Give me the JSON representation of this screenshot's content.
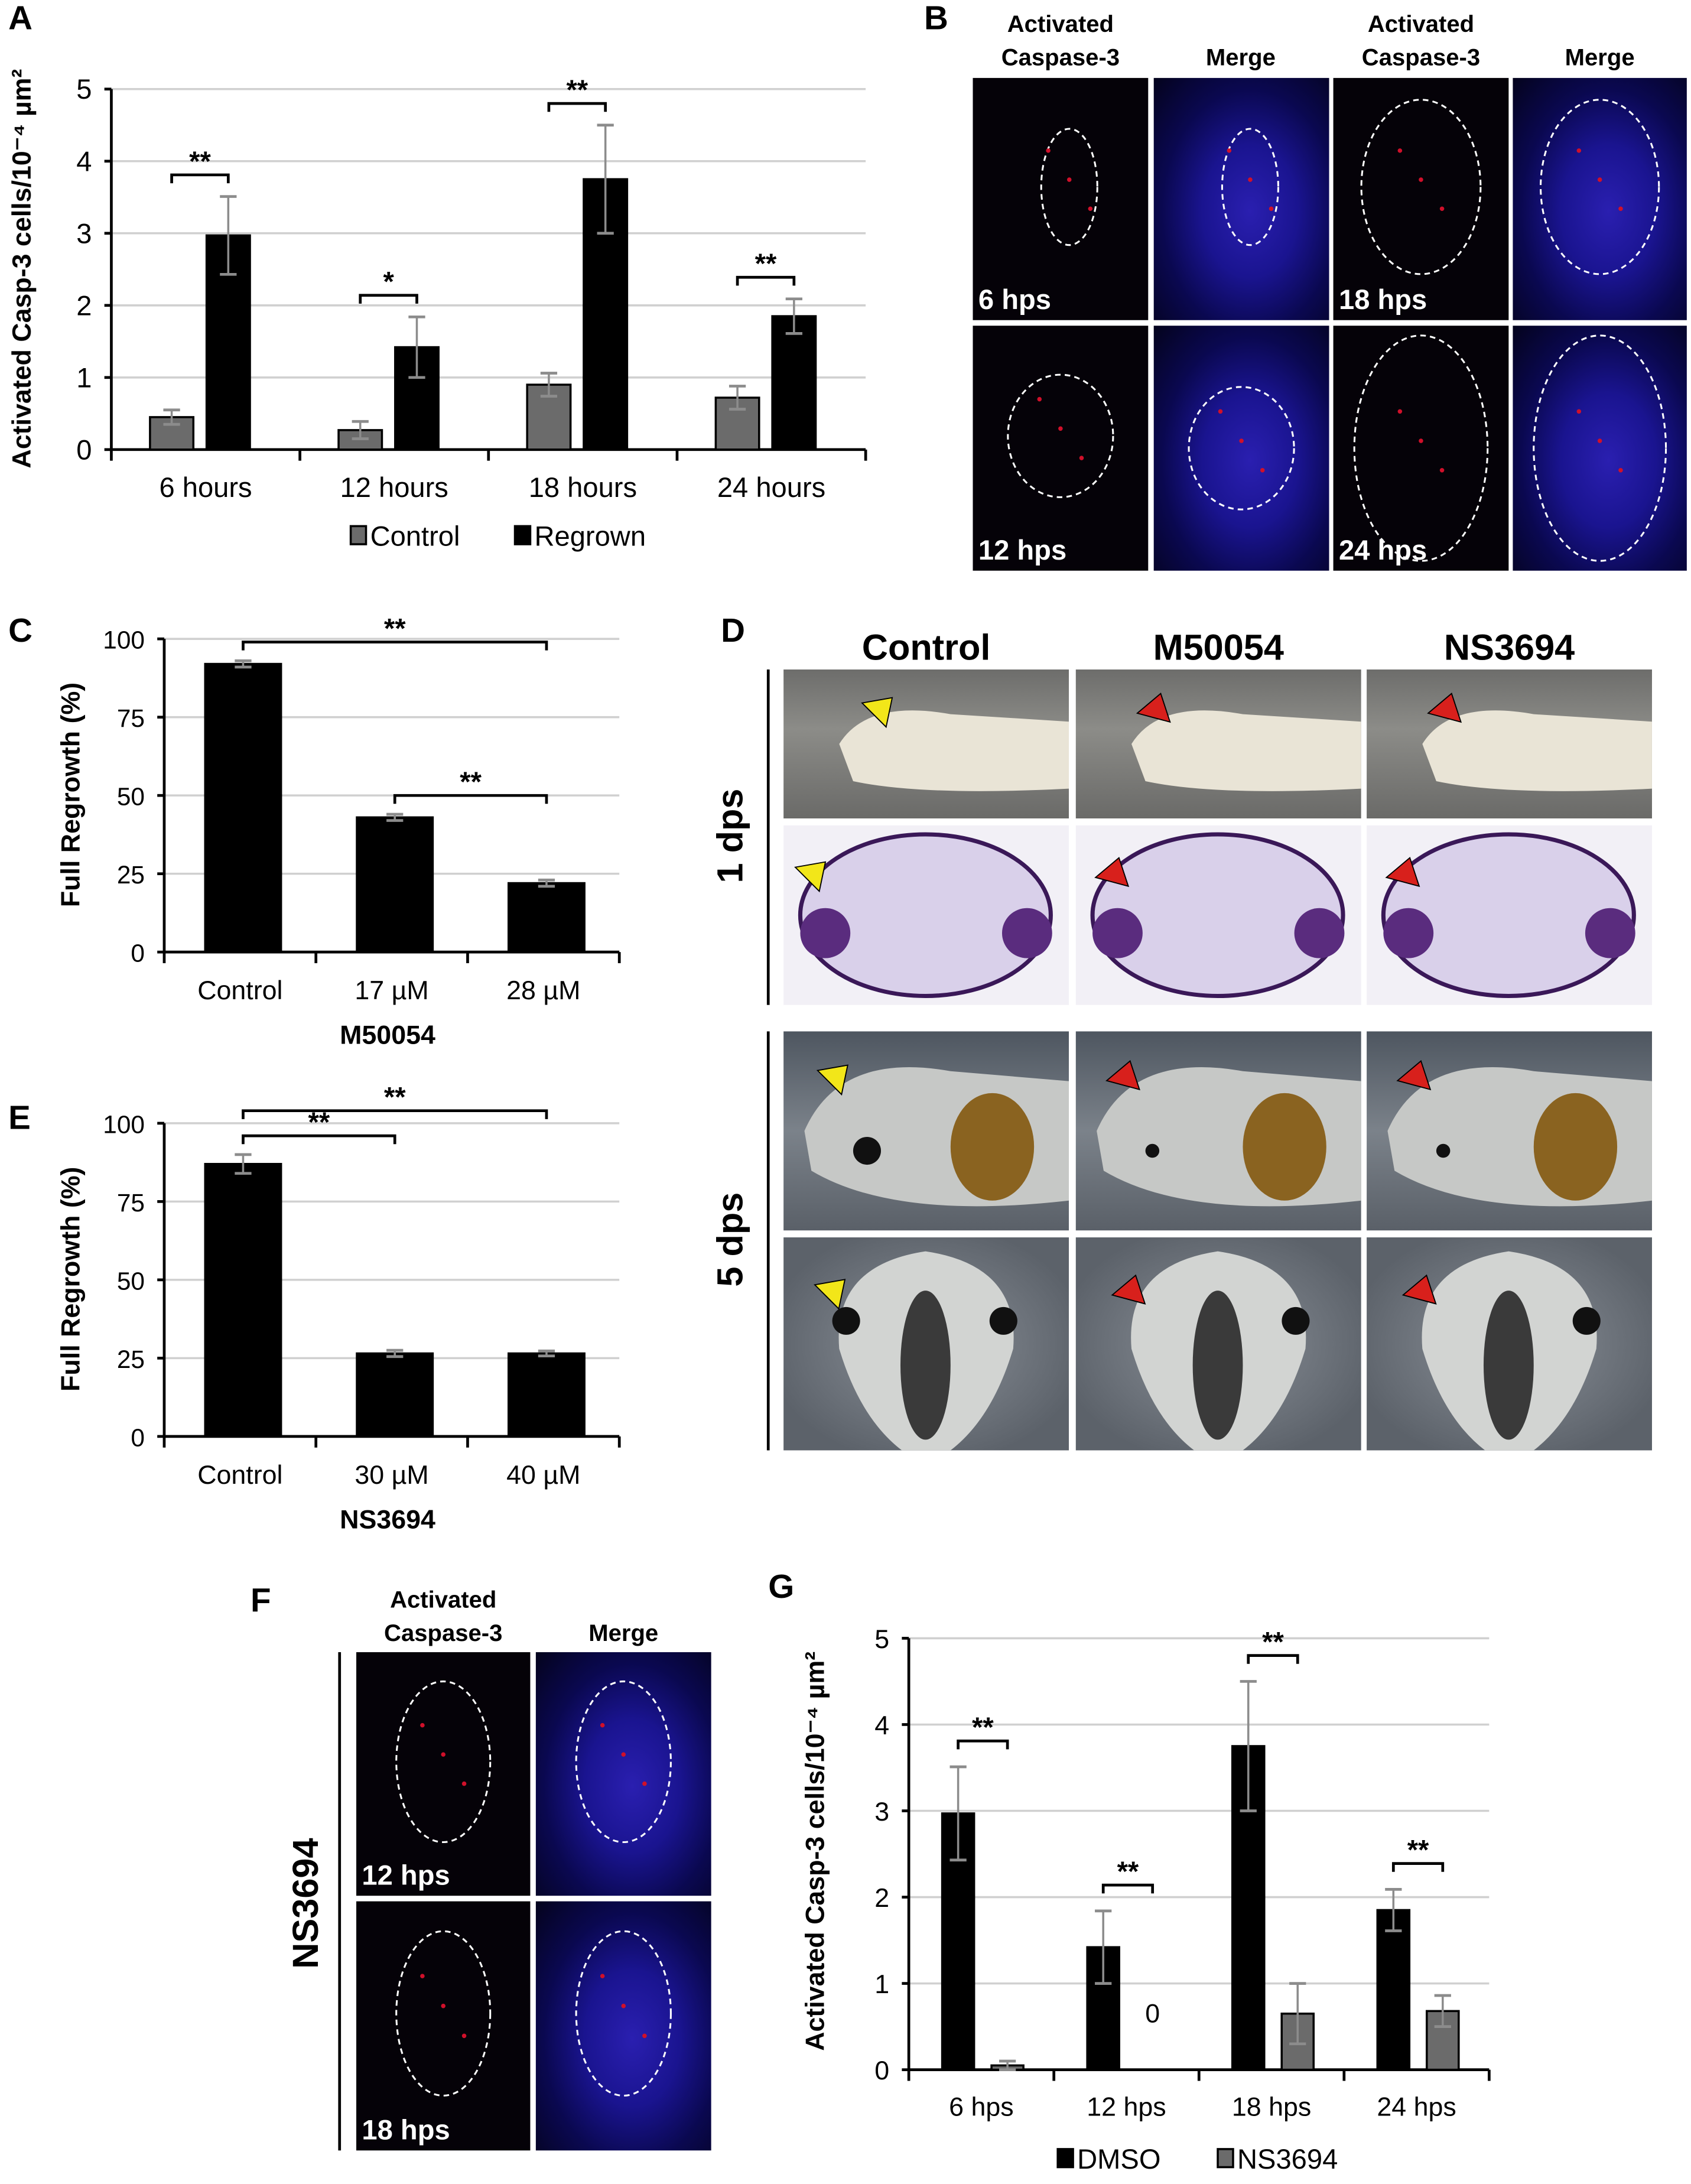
{
  "panels": {
    "A": "A",
    "B": "B",
    "C": "C",
    "D": "D",
    "E": "E",
    "F": "F",
    "G": "G"
  },
  "panel_b": {
    "headers": [
      "Activated\nCaspase-3",
      "Merge",
      "Activated\nCaspase-3",
      "Merge"
    ],
    "tags": [
      "6 hps",
      "18 hps",
      "12 hps",
      "24 hps"
    ]
  },
  "panel_d": {
    "columns": [
      "Control",
      "M50054",
      "NS3694"
    ],
    "rows": [
      "1 dps",
      "5 dps"
    ],
    "arrow_colors": {
      "control": "#f2e619",
      "treated": "#d8201c"
    }
  },
  "panel_f": {
    "headers": [
      "Activated\nCaspase-3",
      "Merge"
    ],
    "row_label": "NS3694",
    "tags": [
      "12 hps",
      "18 hps"
    ]
  },
  "colors": {
    "control_gray": "#6b6b6b",
    "black": "#000000",
    "errorbar": "#8c8c8c",
    "grid": "#d0d0d0",
    "dapi_blue": "#2a1fb0",
    "caspase_red": "#d0102a"
  },
  "chart_data": [
    {
      "id": "A",
      "type": "bar",
      "ylabel": "Activated Casp-3 cells/10⁻⁴ µm²",
      "categories": [
        "6 hours",
        "12 hours",
        "18 hours",
        "24 hours"
      ],
      "ylim": [
        0,
        5
      ],
      "yticks": [
        0,
        1,
        2,
        3,
        4,
        5
      ],
      "grid": true,
      "legend": "bottom",
      "series": [
        {
          "name": "Control",
          "color": "#6b6b6b",
          "values": [
            0.45,
            0.27,
            0.9,
            0.72
          ],
          "errors": [
            0.1,
            0.12,
            0.16,
            0.16
          ]
        },
        {
          "name": "Regrown",
          "color": "#000000",
          "values": [
            2.97,
            1.42,
            3.75,
            1.85
          ],
          "errors": [
            0.54,
            0.42,
            0.75,
            0.24
          ]
        }
      ],
      "significance": [
        {
          "group": 0,
          "label": "**"
        },
        {
          "group": 1,
          "label": "*"
        },
        {
          "group": 2,
          "label": "**"
        },
        {
          "group": 3,
          "label": "**"
        }
      ]
    },
    {
      "id": "C",
      "type": "bar",
      "ylabel": "Full Regrowth (%)",
      "xlabel": "M50054",
      "categories": [
        "Control",
        "17 µM",
        "28 µM"
      ],
      "ylim": [
        0,
        100
      ],
      "yticks": [
        0,
        25,
        50,
        75,
        100
      ],
      "grid": true,
      "series": [
        {
          "color": "#000000",
          "values": [
            92,
            43,
            22
          ],
          "errors": [
            1,
            1,
            1
          ]
        }
      ],
      "significance": [
        {
          "from": 0,
          "to": 2,
          "label": "**"
        },
        {
          "from": 1,
          "to": 2,
          "label": "**"
        }
      ]
    },
    {
      "id": "E",
      "type": "bar",
      "ylabel": "Full Regrowth (%)",
      "xlabel": "NS3694",
      "categories": [
        "Control",
        "30 µM",
        "40 µM"
      ],
      "ylim": [
        0,
        100
      ],
      "yticks": [
        0,
        25,
        50,
        75,
        100
      ],
      "grid": true,
      "series": [
        {
          "color": "#000000",
          "values": [
            87,
            26.5,
            26.5
          ],
          "errors": [
            3,
            1,
            0.8
          ]
        }
      ],
      "significance": [
        {
          "from": 0,
          "to": 1,
          "label": "**"
        },
        {
          "from": 0,
          "to": 2,
          "label": "**"
        }
      ]
    },
    {
      "id": "G",
      "type": "bar",
      "ylabel": "Activated Casp-3 cells/10⁻⁴ µm²",
      "categories": [
        "6 hps",
        "12 hps",
        "18 hps",
        "24 hps"
      ],
      "ylim": [
        0,
        5
      ],
      "yticks": [
        0,
        1,
        2,
        3,
        4,
        5
      ],
      "grid": true,
      "legend": "bottom",
      "series": [
        {
          "name": "DMSO",
          "color": "#000000",
          "values": [
            2.97,
            1.42,
            3.75,
            1.85
          ],
          "errors": [
            0.54,
            0.42,
            0.75,
            0.24
          ]
        },
        {
          "name": "NS3694",
          "color": "#6b6b6b",
          "values": [
            0.05,
            0,
            0.65,
            0.68
          ],
          "errors": [
            0.05,
            0,
            0.35,
            0.18
          ]
        }
      ],
      "value_labels": [
        {
          "series": 1,
          "group": 1,
          "label": "0"
        }
      ],
      "significance": [
        {
          "group": 0,
          "label": "**"
        },
        {
          "group": 1,
          "label": "**"
        },
        {
          "group": 2,
          "label": "**"
        },
        {
          "group": 3,
          "label": "**"
        }
      ]
    }
  ]
}
